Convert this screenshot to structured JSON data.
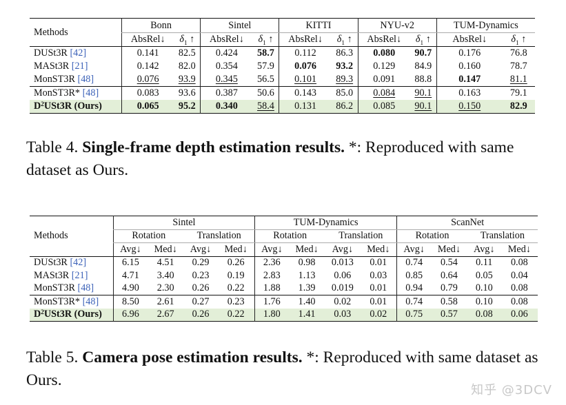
{
  "table4": {
    "methods_header": "Methods",
    "datasets": [
      "Bonn",
      "Sintel",
      "KITTI",
      "NYU-v2",
      "TUM-Dynamics"
    ],
    "metric_absrel": "AbsRel↓",
    "metric_delta": "δ",
    "metric_delta_sub": "1",
    "metric_delta_arrow": " ↑",
    "rows": [
      {
        "name": "DUSt3R",
        "cite": "[42]",
        "vals": [
          "0.141",
          "82.5",
          "0.424",
          "58.7",
          "0.112",
          "86.3",
          "0.080",
          "90.7",
          "0.176",
          "76.8"
        ]
      },
      {
        "name": "MASt3R",
        "cite": "[21]",
        "vals": [
          "0.142",
          "82.0",
          "0.354",
          "57.9",
          "0.076",
          "93.2",
          "0.129",
          "84.9",
          "0.160",
          "78.7"
        ]
      },
      {
        "name": "MonST3R",
        "cite": "[48]",
        "vals": [
          "0.076",
          "93.9",
          "0.345",
          "56.5",
          "0.101",
          "89.3",
          "0.091",
          "88.8",
          "0.147",
          "81.1"
        ]
      },
      {
        "name": "MonST3R*",
        "cite": "[48]",
        "vals": [
          "0.083",
          "93.6",
          "0.387",
          "50.6",
          "0.143",
          "85.0",
          "0.084",
          "90.1",
          "0.163",
          "79.1"
        ]
      },
      {
        "name_d": "D",
        "name_sup": "2",
        "name_rest": "USt3R (Ours)",
        "vals": [
          "0.065",
          "95.2",
          "0.340",
          "58.4",
          "0.131",
          "86.2",
          "0.085",
          "90.1",
          "0.150",
          "82.9"
        ]
      }
    ]
  },
  "caption4": {
    "label": "Table 4.",
    "title": "Single-frame depth estimation results.",
    "rest": "*: Reproduced with same dataset as Ours."
  },
  "table5": {
    "methods_header": "Methods",
    "datasets": [
      "Sintel",
      "TUM-Dynamics",
      "ScanNet"
    ],
    "sub_rotation": "Rotation",
    "sub_translation": "Translation",
    "metric_avg": "Avg↓",
    "metric_med": "Med↓",
    "rows": [
      {
        "name": "DUSt3R",
        "cite": "[42]",
        "vals": [
          "6.15",
          "4.51",
          "0.29",
          "0.26",
          "2.36",
          "0.98",
          "0.013",
          "0.01",
          "0.74",
          "0.54",
          "0.11",
          "0.08"
        ]
      },
      {
        "name": "MASt3R",
        "cite": "[21]",
        "vals": [
          "4.71",
          "3.40",
          "0.23",
          "0.19",
          "2.83",
          "1.13",
          "0.06",
          "0.03",
          "0.85",
          "0.64",
          "0.05",
          "0.04"
        ]
      },
      {
        "name": "MonST3R",
        "cite": "[48]",
        "vals": [
          "4.90",
          "2.30",
          "0.26",
          "0.22",
          "1.88",
          "1.39",
          "0.019",
          "0.01",
          "0.94",
          "0.79",
          "0.10",
          "0.08"
        ]
      },
      {
        "name": "MonST3R*",
        "cite": "[48]",
        "vals": [
          "8.50",
          "2.61",
          "0.27",
          "0.23",
          "1.76",
          "1.40",
          "0.02",
          "0.01",
          "0.74",
          "0.58",
          "0.10",
          "0.08"
        ]
      },
      {
        "name_d": "D",
        "name_sup": "2",
        "name_rest": "USt3R (Ours)",
        "vals": [
          "6.96",
          "2.67",
          "0.26",
          "0.22",
          "1.80",
          "1.41",
          "0.03",
          "0.02",
          "0.75",
          "0.57",
          "0.08",
          "0.06"
        ]
      }
    ]
  },
  "caption5": {
    "label": "Table 5.",
    "title": "Camera pose estimation results.",
    "rest": "*: Reproduced with same dataset as Ours."
  },
  "watermark": "知乎 @3DCV"
}
